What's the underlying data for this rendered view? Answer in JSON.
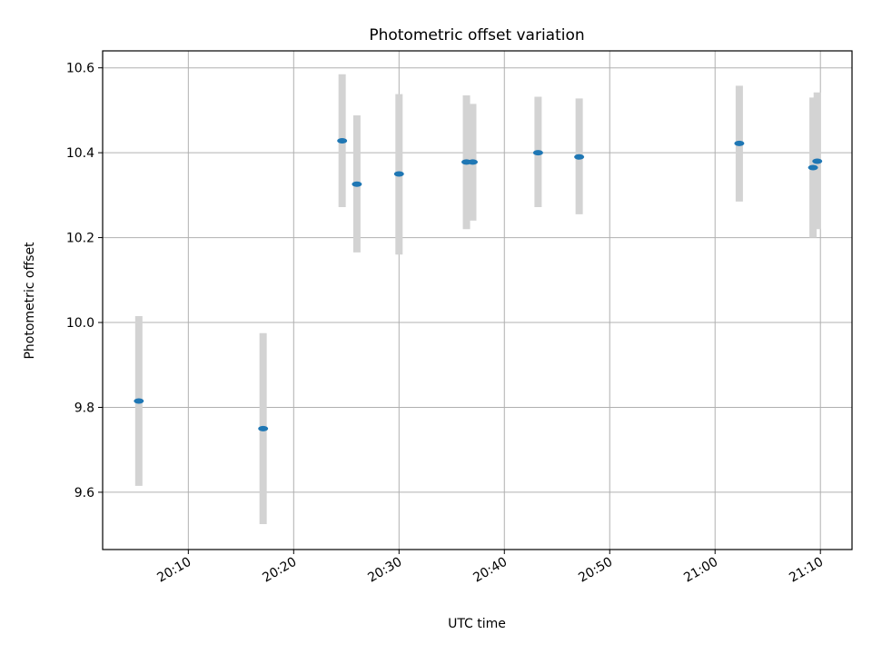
{
  "chart_data": {
    "type": "scatter",
    "title": "Photometric offset variation",
    "xlabel": "UTC time",
    "ylabel": "Photometric offset",
    "x_tick_labels": [
      "20:10",
      "20:20",
      "20:30",
      "20:40",
      "20:50",
      "21:00",
      "21:10"
    ],
    "y_tick_labels": [
      "9.6",
      "9.8",
      "10.0",
      "10.2",
      "10.4",
      "10.6"
    ],
    "x_ticks": [
      "20:10",
      "20:20",
      "20:30",
      "20:40",
      "20:50",
      "21:00",
      "21:10"
    ],
    "y_ticks": [
      9.6,
      9.8,
      10.0,
      10.2,
      10.4,
      10.6
    ],
    "xlim": [
      "20:01:52",
      "21:13:00"
    ],
    "ylim": [
      9.465,
      10.64
    ],
    "grid": true,
    "colors": {
      "marker": "#1f77b4",
      "errorbar": "#d3d3d3",
      "grid": "#b0b0b0"
    },
    "points": [
      {
        "time": "20:05:18",
        "y": 9.815,
        "ylow": 9.615,
        "yhigh": 10.015
      },
      {
        "time": "20:17:06",
        "y": 9.75,
        "ylow": 9.525,
        "yhigh": 9.975
      },
      {
        "time": "20:24:36",
        "y": 10.428,
        "ylow": 10.272,
        "yhigh": 10.585
      },
      {
        "time": "20:26:00",
        "y": 10.326,
        "ylow": 10.165,
        "yhigh": 10.488
      },
      {
        "time": "20:30:00",
        "y": 10.35,
        "ylow": 10.16,
        "yhigh": 10.538
      },
      {
        "time": "20:36:24",
        "y": 10.378,
        "ylow": 10.22,
        "yhigh": 10.535
      },
      {
        "time": "20:37:00",
        "y": 10.378,
        "ylow": 10.24,
        "yhigh": 10.515
      },
      {
        "time": "20:43:12",
        "y": 10.4,
        "ylow": 10.272,
        "yhigh": 10.532
      },
      {
        "time": "20:47:06",
        "y": 10.39,
        "ylow": 10.255,
        "yhigh": 10.528
      },
      {
        "time": "21:02:18",
        "y": 10.422,
        "ylow": 10.285,
        "yhigh": 10.558
      },
      {
        "time": "21:09:18",
        "y": 10.365,
        "ylow": 10.2,
        "yhigh": 10.53
      },
      {
        "time": "21:09:42",
        "y": 10.38,
        "ylow": 10.22,
        "yhigh": 10.542
      }
    ]
  }
}
